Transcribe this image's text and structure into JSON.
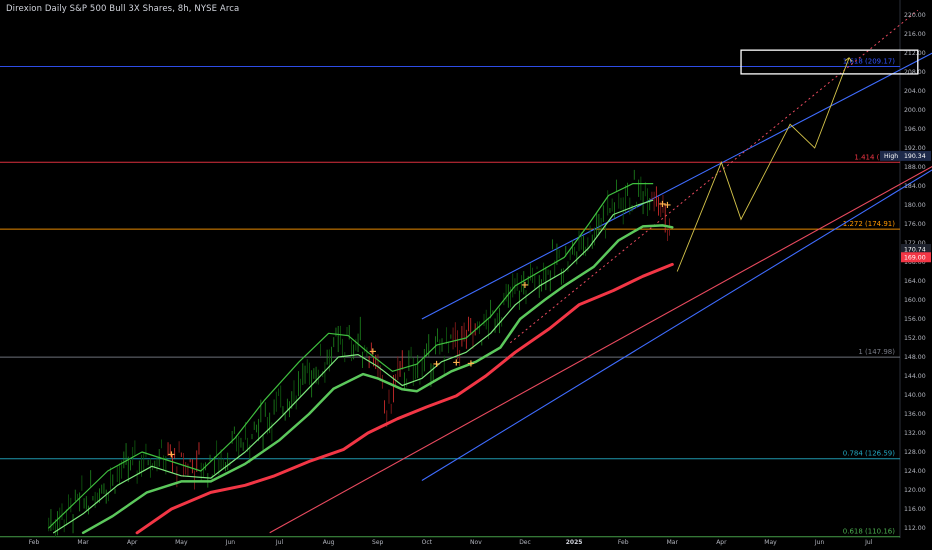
{
  "title": "Direxion Daily S&P 500 Bull 3X Shares, 8h, NYSE Arca",
  "chart_data": {
    "type": "candlestick",
    "price_range": [
      111,
      222
    ],
    "y_ticks": [
      "220.00",
      "216.00",
      "212.00",
      "208.00",
      "204.00",
      "200.00",
      "196.00",
      "192.00",
      "188.00",
      "184.00",
      "180.00",
      "176.00",
      "172.00",
      "168.00",
      "164.00",
      "160.00",
      "156.00",
      "152.00",
      "148.00",
      "144.00",
      "140.00",
      "136.00",
      "132.00",
      "128.00",
      "124.00",
      "120.00",
      "116.00",
      "112.00"
    ],
    "x_ticks": [
      {
        "label": "Feb",
        "bold": false
      },
      {
        "label": "Mar",
        "bold": false
      },
      {
        "label": "Apr",
        "bold": false
      },
      {
        "label": "May",
        "bold": false
      },
      {
        "label": "Jun",
        "bold": false
      },
      {
        "label": "Jul",
        "bold": false
      },
      {
        "label": "Aug",
        "bold": false
      },
      {
        "label": "Sep",
        "bold": false
      },
      {
        "label": "Oct",
        "bold": false
      },
      {
        "label": "Nov",
        "bold": false
      },
      {
        "label": "Dec",
        "bold": false
      },
      {
        "label": "2025",
        "bold": true
      },
      {
        "label": "Feb",
        "bold": false
      },
      {
        "label": "Mar",
        "bold": false
      },
      {
        "label": "Apr",
        "bold": false
      },
      {
        "label": "May",
        "bold": false
      },
      {
        "label": "Jun",
        "bold": false
      },
      {
        "label": "Jul",
        "bold": false
      }
    ],
    "fib_levels": [
      {
        "label": "1.618 (209.17)",
        "price": 209.17,
        "color": "#3355ff"
      },
      {
        "label": "1.414 (188.",
        "price": 189.0,
        "color": "#f23645"
      },
      {
        "label": "1.272 (174.91)",
        "price": 174.91,
        "color": "#ff9800"
      },
      {
        "label": "1 (147.98)",
        "price": 147.98,
        "color": "#787b86"
      },
      {
        "label": "0.784 (126.59)",
        "price": 126.59,
        "color": "#22a7c0"
      },
      {
        "label": "0.618 (110.16)",
        "price": 110.16,
        "color": "#4caf50"
      }
    ],
    "price_markers": [
      {
        "label": "High",
        "value": "190.34",
        "bg": "#1e2a4a",
        "color": "#ffffff"
      },
      {
        "label": "",
        "value": "170.74",
        "bg": "#1e222d",
        "color": "#ffffff"
      },
      {
        "label": "",
        "value": "169.00",
        "bg": "#f23645",
        "color": "#ffffff"
      }
    ],
    "trend_channel": [
      {
        "name": "upper",
        "from": [
          7.9,
          156
        ],
        "to": [
          20.9,
          226
        ],
        "color": "#3f6cff"
      },
      {
        "name": "lower",
        "from": [
          7.9,
          122
        ],
        "to": [
          23.0,
          217
        ],
        "color": "#3f6cff"
      },
      {
        "name": "support",
        "from": [
          4.8,
          111
        ],
        "to": [
          23.0,
          215
        ],
        "color": "#e84a5f"
      }
    ],
    "projection_path": [
      [
        13.1,
        166
      ],
      [
        14.0,
        189
      ],
      [
        14.4,
        177
      ],
      [
        15.4,
        197
      ],
      [
        15.9,
        192
      ],
      [
        16.6,
        211
      ]
    ],
    "target_box": {
      "from": [
        14.4,
        207.6
      ],
      "to": [
        18.0,
        212.6
      ],
      "color": "#ffffff"
    },
    "dotted_extension": {
      "from": [
        9.7,
        151
      ],
      "to": [
        18.0,
        221
      ],
      "color": "#e84a5f"
    },
    "cross_markers": [
      [
        2.8,
        127.5
      ],
      [
        6.9,
        149.2
      ],
      [
        8.2,
        146.5
      ],
      [
        8.6,
        146.8
      ],
      [
        8.9,
        146.6
      ],
      [
        10.0,
        163.2
      ],
      [
        12.8,
        180.2
      ],
      [
        12.9,
        180.0
      ]
    ],
    "moving_averages": [
      {
        "name": "ma-red",
        "color": "#f23645",
        "width": 3,
        "points": [
          [
            2.1,
            111
          ],
          [
            2.8,
            116
          ],
          [
            3.6,
            119.5
          ],
          [
            4.3,
            121
          ],
          [
            4.9,
            123
          ],
          [
            5.6,
            126
          ],
          [
            6.3,
            128.5
          ],
          [
            6.8,
            132
          ],
          [
            7.4,
            135
          ],
          [
            8.0,
            137.5
          ],
          [
            8.6,
            139.8
          ],
          [
            9.2,
            144
          ],
          [
            9.8,
            149
          ],
          [
            10.5,
            154
          ],
          [
            11.1,
            159
          ],
          [
            11.8,
            162
          ],
          [
            12.4,
            165
          ],
          [
            13.0,
            167.5
          ]
        ]
      },
      {
        "name": "ma-green-thick",
        "color": "#5cc85c",
        "width": 2.5,
        "points": [
          [
            1.0,
            111
          ],
          [
            1.6,
            114.5
          ],
          [
            2.3,
            119.5
          ],
          [
            3.0,
            121.8
          ],
          [
            3.6,
            121.8
          ],
          [
            4.3,
            125.5
          ],
          [
            5.0,
            130.5
          ],
          [
            5.6,
            136
          ],
          [
            6.1,
            141.3
          ],
          [
            6.7,
            144.4
          ],
          [
            7.0,
            143.5
          ],
          [
            7.5,
            141.2
          ],
          [
            7.8,
            140.8
          ],
          [
            8.2,
            143.2
          ],
          [
            8.5,
            145
          ],
          [
            9.0,
            147
          ],
          [
            9.5,
            150
          ],
          [
            9.9,
            156
          ],
          [
            10.4,
            160
          ],
          [
            10.8,
            163
          ],
          [
            11.4,
            167
          ],
          [
            11.9,
            172.5
          ],
          [
            12.4,
            175.5
          ],
          [
            12.8,
            175.7
          ],
          [
            13.0,
            175.3
          ]
        ]
      },
      {
        "name": "ma-green-1",
        "color": "#7de87d",
        "width": 1.2,
        "points": [
          [
            0.4,
            111
          ],
          [
            1.0,
            115
          ],
          [
            1.7,
            121
          ],
          [
            2.4,
            125
          ],
          [
            3.0,
            123
          ],
          [
            3.6,
            122.5
          ],
          [
            4.3,
            128
          ],
          [
            5.0,
            135
          ],
          [
            5.6,
            141.5
          ],
          [
            6.2,
            148
          ],
          [
            6.6,
            148.5
          ],
          [
            7.0,
            146
          ],
          [
            7.5,
            142
          ],
          [
            7.9,
            143.5
          ],
          [
            8.3,
            147
          ],
          [
            8.8,
            149
          ],
          [
            9.3,
            153
          ],
          [
            9.8,
            159
          ],
          [
            10.3,
            163
          ],
          [
            10.8,
            166
          ],
          [
            11.3,
            171
          ],
          [
            11.8,
            178
          ],
          [
            12.3,
            180
          ],
          [
            12.6,
            181
          ]
        ]
      },
      {
        "name": "ma-green-2",
        "color": "#3fbf3f",
        "width": 1.2,
        "points": [
          [
            0.3,
            112
          ],
          [
            0.9,
            118
          ],
          [
            1.5,
            124
          ],
          [
            2.2,
            128
          ],
          [
            2.8,
            126
          ],
          [
            3.4,
            124
          ],
          [
            4.1,
            131
          ],
          [
            4.7,
            139
          ],
          [
            5.4,
            147
          ],
          [
            6.0,
            153
          ],
          [
            6.4,
            152.5
          ],
          [
            6.8,
            149
          ],
          [
            7.3,
            145
          ],
          [
            7.8,
            146.5
          ],
          [
            8.2,
            150.5
          ],
          [
            8.8,
            152
          ],
          [
            9.3,
            156.5
          ],
          [
            9.8,
            163
          ],
          [
            10.3,
            166
          ],
          [
            10.8,
            169
          ],
          [
            11.3,
            176
          ],
          [
            11.7,
            182
          ],
          [
            12.2,
            184.5
          ],
          [
            12.6,
            184.5
          ]
        ]
      }
    ],
    "candles_generated": true
  }
}
